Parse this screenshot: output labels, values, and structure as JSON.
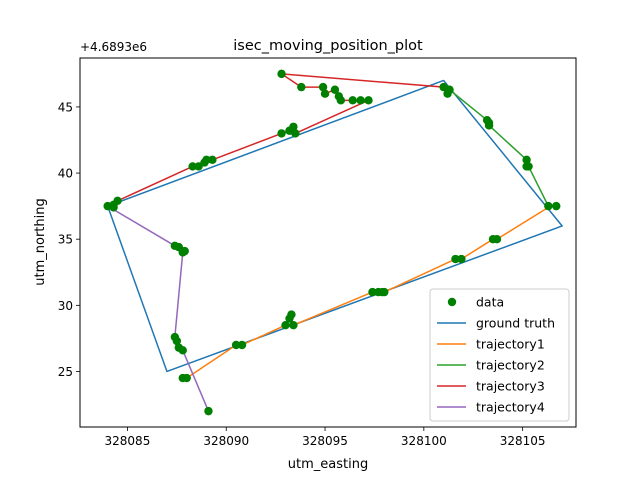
{
  "chart_data": {
    "type": "line",
    "title": "isec_moving_position_plot",
    "xlabel": "utm_easting",
    "ylabel": "utm_northing",
    "y_offset_label": "+4.6893e6",
    "xlim": [
      328082.6,
      328107.7
    ],
    "ylim": [
      20.8,
      48.7
    ],
    "x_ticks": [
      328085,
      328090,
      328095,
      328100,
      328105
    ],
    "y_ticks": [
      25,
      30,
      35,
      40,
      45
    ],
    "grid": false,
    "legend_position": "lower-right",
    "colors": {
      "data": "#008000",
      "ground_truth": "#1f77b4",
      "trajectory1": "#ff7f0e",
      "trajectory2": "#2ca02c",
      "trajectory3": "#d62728",
      "trajectory4": "#9467bd"
    },
    "legend": [
      "data",
      "ground truth",
      "trajectory1",
      "trajectory2",
      "trajectory3",
      "trajectory4"
    ],
    "data_points": [
      [
        328084.0,
        37.5
      ],
      [
        328084.3,
        37.6
      ],
      [
        328084.5,
        37.9
      ],
      [
        328084.3,
        37.4
      ],
      [
        328088.3,
        40.5
      ],
      [
        328088.6,
        40.5
      ],
      [
        328088.9,
        40.8
      ],
      [
        328089.0,
        41.0
      ],
      [
        328089.3,
        41.0
      ],
      [
        328092.8,
        43.0
      ],
      [
        328093.2,
        43.2
      ],
      [
        328093.4,
        43.5
      ],
      [
        328093.5,
        43.0
      ],
      [
        328092.8,
        47.5
      ],
      [
        328093.8,
        46.5
      ],
      [
        328094.9,
        46.5
      ],
      [
        328095.0,
        46.0
      ],
      [
        328095.5,
        46.3
      ],
      [
        328095.7,
        45.8
      ],
      [
        328095.8,
        45.5
      ],
      [
        328096.4,
        45.5
      ],
      [
        328096.8,
        45.5
      ],
      [
        328097.2,
        45.5
      ],
      [
        328101.0,
        46.5
      ],
      [
        328101.2,
        46.0
      ],
      [
        328101.3,
        46.3
      ],
      [
        328103.2,
        44.0
      ],
      [
        328103.3,
        43.6
      ],
      [
        328103.3,
        43.8
      ],
      [
        328105.2,
        41.0
      ],
      [
        328105.2,
        40.5
      ],
      [
        328105.3,
        40.5
      ],
      [
        328106.3,
        37.5
      ],
      [
        328106.7,
        37.5
      ],
      [
        328103.5,
        35.0
      ],
      [
        328103.7,
        35.0
      ],
      [
        328101.6,
        33.5
      ],
      [
        328101.9,
        33.5
      ],
      [
        328097.4,
        31.0
      ],
      [
        328097.7,
        31.0
      ],
      [
        328097.9,
        31.0
      ],
      [
        328098.0,
        31.0
      ],
      [
        328093.0,
        28.5
      ],
      [
        328093.2,
        29.0
      ],
      [
        328093.4,
        28.5
      ],
      [
        328093.3,
        29.3
      ],
      [
        328090.5,
        27.0
      ],
      [
        328090.8,
        27.0
      ],
      [
        328088.0,
        24.5
      ],
      [
        328087.8,
        24.5
      ],
      [
        328087.5,
        27.3
      ],
      [
        328087.6,
        26.8
      ],
      [
        328087.8,
        26.6
      ],
      [
        328087.4,
        27.6
      ],
      [
        328087.4,
        34.5
      ],
      [
        328087.6,
        34.4
      ],
      [
        328087.8,
        34.0
      ],
      [
        328087.9,
        34.1
      ],
      [
        328089.1,
        22.0
      ]
    ],
    "series": [
      {
        "name": "ground truth",
        "color": "#1f77b4",
        "points": [
          [
            328084.0,
            37.5
          ],
          [
            328101.0,
            47.0
          ],
          [
            328107.0,
            36.0
          ],
          [
            328087.0,
            25.0
          ],
          [
            328084.0,
            37.5
          ]
        ]
      },
      {
        "name": "trajectory1",
        "color": "#ff7f0e",
        "points": [
          [
            328087.8,
            24.5
          ],
          [
            328088.0,
            24.5
          ],
          [
            328090.5,
            27.0
          ],
          [
            328090.8,
            27.0
          ],
          [
            328093.0,
            28.5
          ],
          [
            328093.2,
            29.2
          ],
          [
            328093.4,
            28.5
          ],
          [
            328097.4,
            31.0
          ],
          [
            328098.0,
            31.0
          ],
          [
            328101.6,
            33.5
          ],
          [
            328101.9,
            33.5
          ],
          [
            328103.5,
            35.0
          ],
          [
            328103.7,
            35.0
          ],
          [
            328106.4,
            37.5
          ]
        ]
      },
      {
        "name": "trajectory2",
        "color": "#2ca02c",
        "points": [
          [
            328106.7,
            37.5
          ],
          [
            328106.3,
            37.5
          ],
          [
            328105.3,
            40.5
          ],
          [
            328105.2,
            40.5
          ],
          [
            328105.2,
            41.0
          ],
          [
            328103.3,
            43.6
          ],
          [
            328103.2,
            44.0
          ],
          [
            328101.3,
            46.3
          ],
          [
            328101.2,
            46.0
          ],
          [
            328101.0,
            46.5
          ]
        ]
      },
      {
        "name": "trajectory3",
        "color": "#d62728",
        "points": [
          [
            328101.0,
            46.5
          ],
          [
            328092.8,
            47.5
          ],
          [
            328093.8,
            46.5
          ],
          [
            328094.9,
            46.5
          ],
          [
            328095.0,
            46.0
          ],
          [
            328095.5,
            46.3
          ],
          [
            328095.7,
            45.8
          ],
          [
            328095.8,
            45.5
          ],
          [
            328097.2,
            45.5
          ],
          [
            328093.5,
            43.0
          ],
          [
            328093.4,
            43.5
          ],
          [
            328093.2,
            43.2
          ],
          [
            328092.8,
            43.0
          ],
          [
            328089.3,
            41.0
          ],
          [
            328089.0,
            41.0
          ],
          [
            328088.9,
            40.8
          ],
          [
            328088.6,
            40.5
          ],
          [
            328088.3,
            40.5
          ],
          [
            328084.5,
            37.9
          ],
          [
            328084.3,
            37.4
          ],
          [
            328084.0,
            37.5
          ]
        ]
      },
      {
        "name": "trajectory4",
        "color": "#9467bd",
        "points": [
          [
            328084.0,
            37.5
          ],
          [
            328087.4,
            34.5
          ],
          [
            328087.6,
            34.4
          ],
          [
            328087.9,
            34.1
          ],
          [
            328087.8,
            34.0
          ],
          [
            328087.4,
            27.6
          ],
          [
            328087.5,
            27.3
          ],
          [
            328087.6,
            26.8
          ],
          [
            328087.8,
            26.6
          ],
          [
            328089.1,
            22.0
          ]
        ]
      }
    ]
  }
}
